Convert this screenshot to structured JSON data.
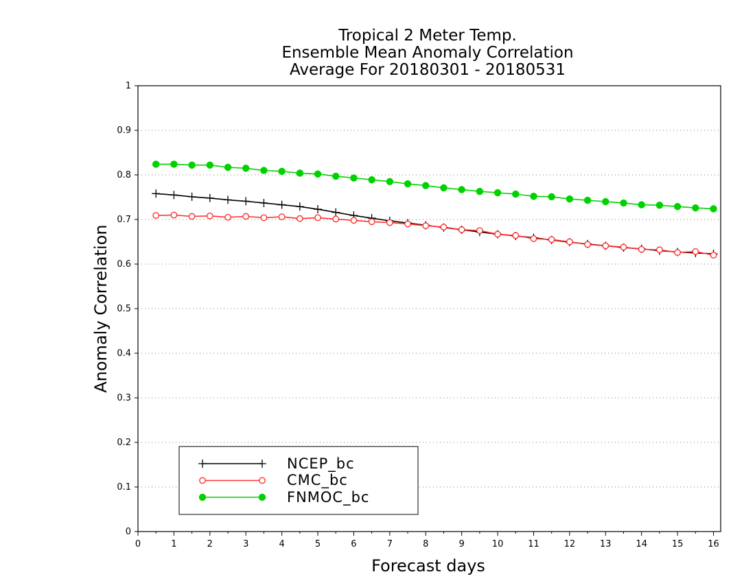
{
  "chart_data": {
    "type": "line",
    "title_lines": [
      "Tropical 2 Meter Temp.",
      "Ensemble Mean Anomaly Correlation",
      "Average For 20180301 - 20180531"
    ],
    "xlabel": "Forecast days",
    "ylabel": "Anomaly Correlation",
    "xlim": [
      0,
      16.2
    ],
    "ylim": [
      0,
      1
    ],
    "xticks": [
      "0",
      "1",
      "2",
      "3",
      "4",
      "5",
      "6",
      "7",
      "8",
      "9",
      "10",
      "11",
      "12",
      "13",
      "14",
      "15",
      "16"
    ],
    "yticks": [
      "0",
      "0.1",
      "0.2",
      "0.3",
      "0.4",
      "0.5",
      "0.6",
      "0.7",
      "0.8",
      "0.9",
      "1"
    ],
    "grid": "horizontal dotted",
    "legend_position": "bottom-left",
    "x": [
      0.5,
      1,
      1.5,
      2,
      2.5,
      3,
      3.5,
      4,
      4.5,
      5,
      5.5,
      6,
      6.5,
      7,
      7.5,
      8,
      8.5,
      9,
      9.5,
      10,
      10.5,
      11,
      11.5,
      12,
      12.5,
      13,
      13.5,
      14,
      14.5,
      15,
      15.5,
      16
    ],
    "series": [
      {
        "name": "NCEP_bc",
        "color": "#000000",
        "marker": "plus",
        "values": [
          0.758,
          0.755,
          0.751,
          0.748,
          0.744,
          0.741,
          0.737,
          0.733,
          0.729,
          0.723,
          0.716,
          0.709,
          0.703,
          0.697,
          0.692,
          0.687,
          0.682,
          0.677,
          0.672,
          0.667,
          0.663,
          0.659,
          0.654,
          0.649,
          0.645,
          0.641,
          0.637,
          0.634,
          0.63,
          0.627,
          0.625,
          0.623
        ]
      },
      {
        "name": "CMC_bc",
        "color": "#ff3030",
        "marker": "open-circle",
        "values": [
          0.709,
          0.71,
          0.707,
          0.708,
          0.705,
          0.707,
          0.704,
          0.706,
          0.702,
          0.704,
          0.701,
          0.698,
          0.695,
          0.693,
          0.69,
          0.686,
          0.683,
          0.677,
          0.675,
          0.667,
          0.664,
          0.657,
          0.655,
          0.65,
          0.644,
          0.641,
          0.638,
          0.633,
          0.632,
          0.626,
          0.628,
          0.62
        ]
      },
      {
        "name": "FNMOC_bc",
        "color": "#00d200",
        "marker": "filled-circle",
        "values": [
          0.824,
          0.824,
          0.822,
          0.822,
          0.817,
          0.815,
          0.81,
          0.808,
          0.804,
          0.802,
          0.797,
          0.793,
          0.789,
          0.785,
          0.78,
          0.776,
          0.771,
          0.767,
          0.763,
          0.76,
          0.757,
          0.752,
          0.751,
          0.746,
          0.743,
          0.74,
          0.737,
          0.733,
          0.732,
          0.729,
          0.726,
          0.724
        ]
      }
    ]
  }
}
